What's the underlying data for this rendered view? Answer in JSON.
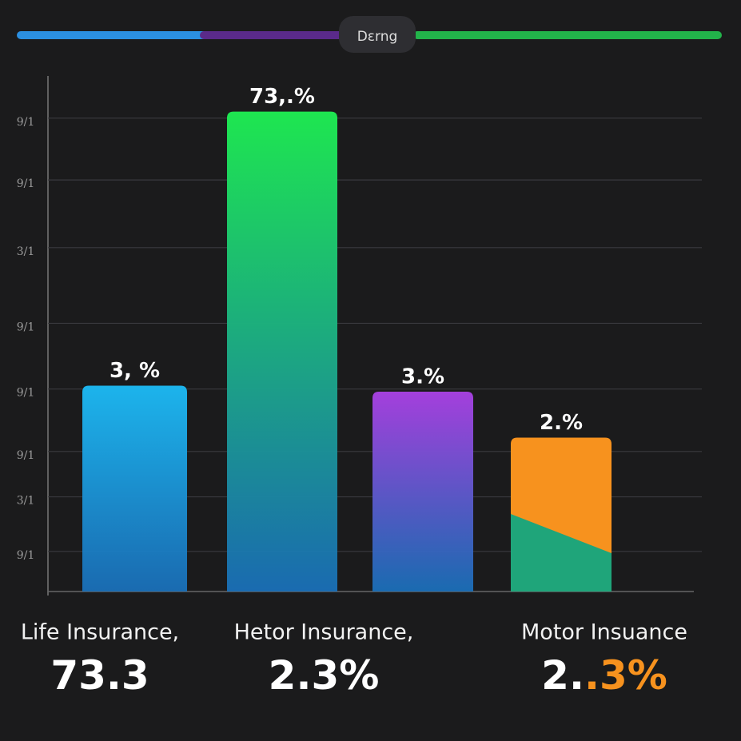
{
  "header": {
    "badge": "Dɛrng",
    "segment_colors": [
      "#2b8fe0",
      "#5a2a8a",
      "#22b34a"
    ]
  },
  "chart_data": {
    "type": "bar",
    "categories": [
      null,
      null,
      null,
      null
    ],
    "values": [
      31.3,
      73,
      30.4,
      23.4
    ],
    "bar_labels": [
      "3, %",
      "73,.%",
      "3.%",
      "2.%"
    ],
    "colors": [
      "#1cb4ec",
      "#1ee650",
      "#a43fdc",
      "#f7921e"
    ],
    "ylim": [
      0,
      80
    ],
    "yticks": [
      {
        "value": 72,
        "label": "9/1"
      },
      {
        "value": 62.6,
        "label": "9/1"
      },
      {
        "value": 52.3,
        "label": "3/1"
      },
      {
        "value": 40.8,
        "label": "9/1"
      },
      {
        "value": 30.8,
        "label": "9/1"
      },
      {
        "value": 21.3,
        "label": "9/1"
      },
      {
        "value": 14.4,
        "label": "3/1"
      },
      {
        "value": 6.1,
        "label": "9/1"
      }
    ],
    "grid": true
  },
  "footer": [
    {
      "label": "Life Insurance,",
      "value_parts": [
        "73.3"
      ]
    },
    {
      "label": "Hetor Insurance,",
      "value_parts": [
        "2.3%"
      ]
    },
    {
      "label": "Motor Insuance",
      "value_parts": [
        "2.",
        ".3%"
      ]
    }
  ]
}
